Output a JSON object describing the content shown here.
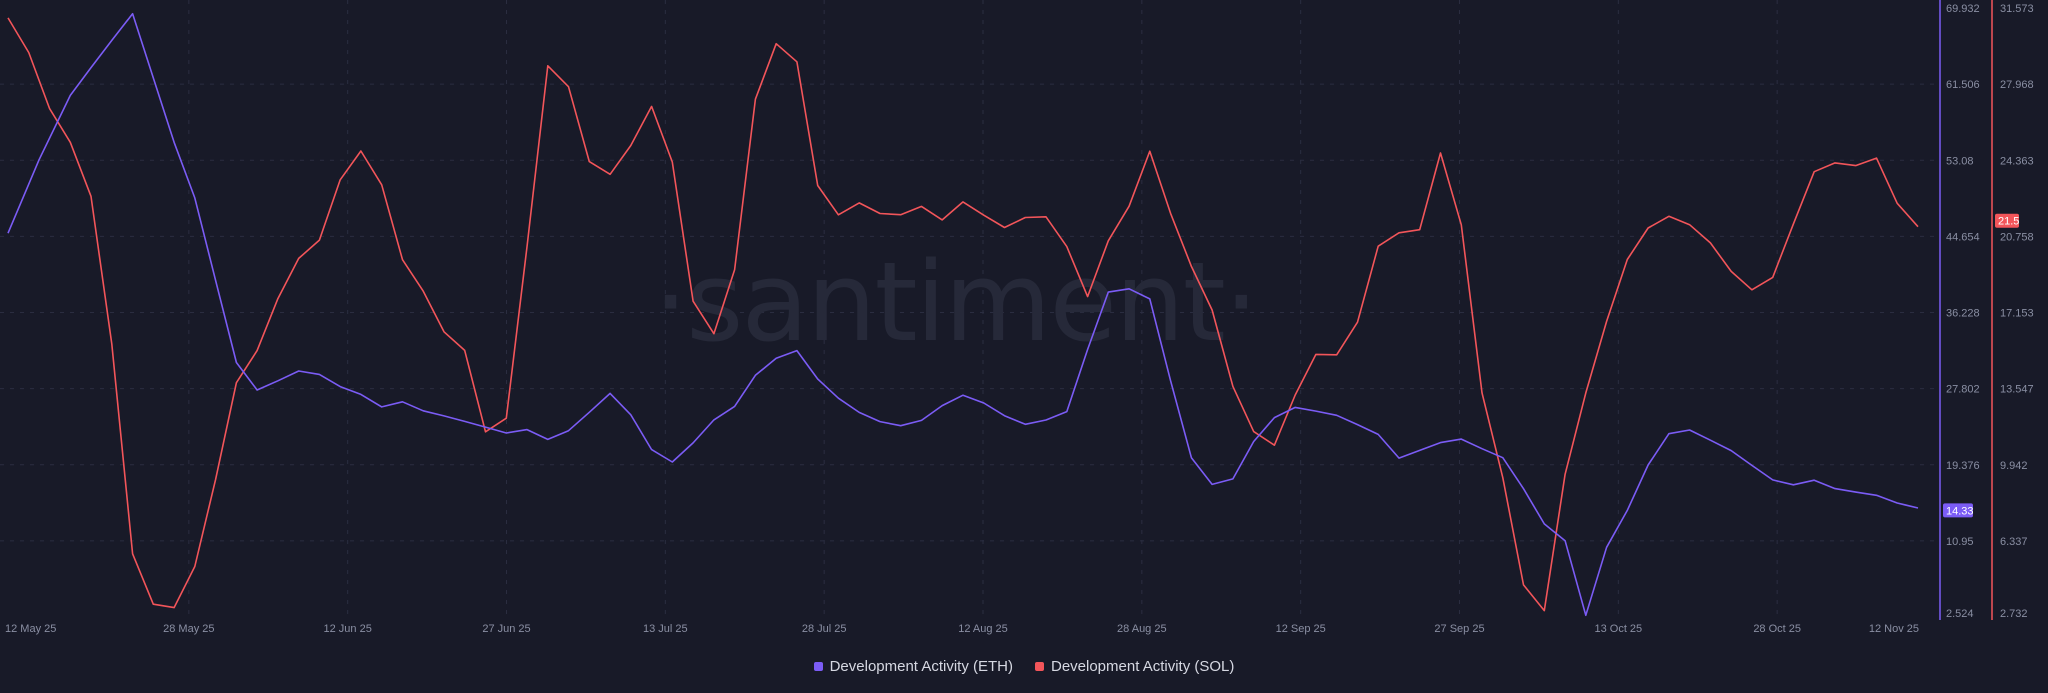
{
  "chart_data": {
    "type": "line",
    "watermark": "·santiment·",
    "x_ticks": [
      "12 May 25",
      "28 May 25",
      "12 Jun 25",
      "27 Jun 25",
      "13 Jul 25",
      "28 Jul 25",
      "12 Aug 25",
      "28 Aug 25",
      "12 Sep 25",
      "27 Sep 25",
      "13 Oct 25",
      "28 Oct 25",
      "12 Nov 25"
    ],
    "left_axis": {
      "ticks": [
        "69.932",
        "61.506",
        "53.08",
        "44.654",
        "36.228",
        "27.802",
        "19.376",
        "10.95",
        "2.524"
      ],
      "ylim": [
        2.524,
        69.932
      ],
      "color": "#7b5cf5"
    },
    "right_axis": {
      "ticks": [
        "31.573",
        "27.968",
        "24.363",
        "20.758",
        "17.153",
        "13.547",
        "9.942",
        "6.337",
        "2.732"
      ],
      "ylim": [
        2.732,
        31.573
      ],
      "color": "#f2555a"
    },
    "series": [
      {
        "name": "Development Activity (ETH)",
        "color": "#7b5cf5",
        "axis": "left",
        "last_value": "14.33",
        "x": [
          0,
          3,
          6,
          8,
          10,
          12,
          14,
          16,
          18,
          20,
          22,
          24,
          26,
          28,
          30,
          32,
          34,
          36,
          38,
          40,
          42,
          44,
          46,
          48,
          50,
          52,
          54,
          56,
          58,
          60,
          62,
          64,
          66,
          68,
          70,
          72,
          74,
          76,
          78,
          80,
          82,
          84,
          86,
          88,
          90,
          92,
          94,
          96,
          98,
          100,
          102,
          104,
          106,
          108,
          110,
          112,
          114,
          116,
          118,
          120,
          122,
          124,
          126,
          128,
          130,
          132,
          134,
          136,
          138,
          140,
          142,
          144,
          146,
          148,
          150,
          152,
          154,
          156,
          158,
          160,
          162,
          164,
          166,
          168,
          170,
          172,
          174,
          176,
          178,
          180,
          182,
          184
        ],
        "values": [
          45,
          53,
          60,
          63,
          66,
          69,
          62,
          55,
          49,
          40,
          31,
          28,
          29,
          30,
          29.5,
          28,
          27,
          25.5,
          26,
          25,
          24.5,
          24,
          23.5,
          23,
          23.5,
          22.5,
          23.5,
          25.5,
          27.5,
          25,
          21,
          19.5,
          21.5,
          24,
          25.5,
          29,
          31,
          32,
          29,
          27,
          25.5,
          24.5,
          24,
          24.5,
          26,
          27,
          26,
          24.5,
          23.5,
          24,
          25,
          32,
          38.5,
          39,
          38,
          29,
          20.5,
          17.5,
          18,
          22,
          24.5,
          25.5,
          25,
          24.5,
          23.5,
          22.5,
          20,
          21,
          22,
          22.5,
          21.5,
          20.5,
          17,
          13,
          11,
          2.6,
          10,
          14,
          19,
          22.5,
          23,
          22,
          21,
          19.5,
          18,
          17.5,
          18,
          17,
          16.5,
          16,
          15,
          14.33
        ]
      },
      {
        "name": "Development Activity (SOL)",
        "color": "#f2555a",
        "axis": "right",
        "last_value": "21.5",
        "x": [
          0,
          2,
          4,
          6,
          8,
          10,
          12,
          14,
          16,
          18,
          20,
          22,
          24,
          26,
          28,
          30,
          32,
          34,
          36,
          38,
          40,
          42,
          44,
          46,
          48,
          50,
          52,
          54,
          56,
          58,
          60,
          62,
          64,
          66,
          68,
          70,
          72,
          74,
          76,
          78,
          80,
          82,
          84,
          86,
          88,
          90,
          92,
          94,
          96,
          98,
          100,
          102,
          104,
          106,
          108,
          110,
          112,
          114,
          116,
          118,
          120,
          122,
          124,
          126,
          128,
          130,
          132,
          134,
          136,
          138,
          140,
          142,
          144,
          146,
          148,
          150,
          152,
          154,
          156,
          158,
          160,
          162,
          164,
          166,
          168,
          170,
          172,
          174,
          176,
          178,
          180,
          182,
          184
        ],
        "values": [
          31,
          29.5,
          27,
          25.5,
          23,
          16,
          6,
          3.5,
          3.2,
          5,
          9,
          13.5,
          15,
          17.5,
          19.5,
          20.5,
          23.5,
          25,
          23.5,
          20,
          18.5,
          16.5,
          15.5,
          11.5,
          12,
          20,
          28.5,
          27.5,
          24,
          23.5,
          25,
          27,
          24.5,
          18,
          16.5,
          19.5,
          27.5,
          30,
          29,
          23,
          21.5,
          22,
          21.5,
          21.5,
          22,
          21.5,
          22.5,
          22,
          21.5,
          22,
          22,
          20.5,
          18,
          20.5,
          22,
          24.5,
          21.5,
          19,
          17,
          13.5,
          11.5,
          11,
          13.5,
          15.5,
          15.5,
          17,
          20.5,
          21,
          21,
          24.5,
          21,
          13,
          9,
          4,
          2.9,
          9.5,
          13.5,
          17,
          20,
          21.5,
          22,
          21.5,
          20.5,
          19,
          18,
          18.5,
          21,
          23.5,
          24,
          24,
          24.5,
          22.5,
          21.5
        ]
      }
    ]
  },
  "legend": {
    "eth_label": "Development Activity (ETH)",
    "sol_label": "Development Activity (SOL)"
  }
}
